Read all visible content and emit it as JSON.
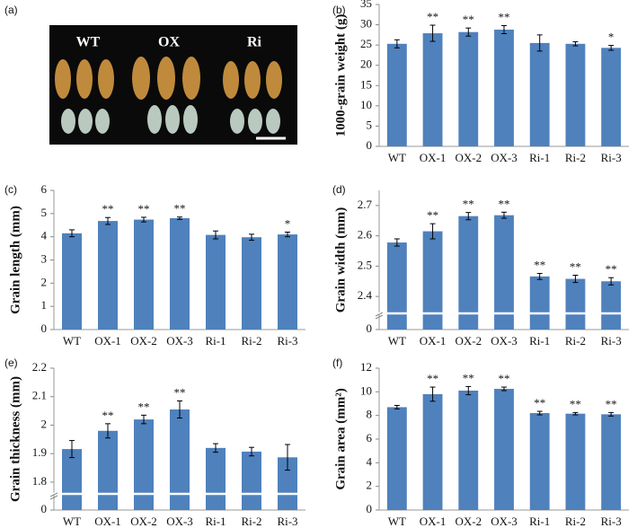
{
  "photo": {
    "panel_label": "(a)",
    "labels": [
      "WT",
      "OX",
      "Ri"
    ]
  },
  "chart_data": [
    {
      "type": "bar",
      "panel_label": "(b)",
      "y_label": "1000-grain weight (g)",
      "color": "#4f81bd",
      "categories": [
        "WT",
        "OX-1",
        "OX-2",
        "OX-3",
        "Ri-1",
        "Ri-2",
        "Ri-3"
      ],
      "values": [
        25.3,
        27.9,
        28.2,
        28.8,
        25.5,
        25.3,
        24.3
      ],
      "errors": [
        1.0,
        2.0,
        1.0,
        1.0,
        2.0,
        0.5,
        0.6
      ],
      "annotations": [
        null,
        "**",
        "**",
        "**",
        null,
        null,
        "*"
      ],
      "ylim": [
        0,
        35
      ],
      "yticks": [
        0,
        5,
        10,
        15,
        20,
        25,
        30,
        35
      ]
    },
    {
      "type": "bar",
      "panel_label": "(c)",
      "y_label": "Grain length (mm)",
      "color": "#4f81bd",
      "categories": [
        "WT",
        "OX-1",
        "OX-2",
        "OX-3",
        "Ri-1",
        "Ri-2",
        "Ri-3"
      ],
      "values": [
        4.15,
        4.68,
        4.74,
        4.8,
        4.08,
        3.98,
        4.1
      ],
      "errors": [
        0.15,
        0.15,
        0.1,
        0.05,
        0.17,
        0.13,
        0.1
      ],
      "annotations": [
        null,
        "**",
        "**",
        "**",
        null,
        null,
        "*"
      ],
      "ylim": [
        0,
        6
      ],
      "yticks": [
        0,
        1,
        2,
        3,
        4,
        5,
        6
      ]
    },
    {
      "type": "bar",
      "panel_label": "(d)",
      "y_label": "Grain width (mm)",
      "color": "#4f81bd",
      "categories": [
        "WT",
        "OX-1",
        "OX-2",
        "OX-3",
        "Ri-1",
        "Ri-2",
        "Ri-3"
      ],
      "values": [
        2.578,
        2.615,
        2.665,
        2.668,
        2.466,
        2.458,
        2.45
      ],
      "errors": [
        0.012,
        0.025,
        0.012,
        0.01,
        0.01,
        0.012,
        0.012
      ],
      "annotations": [
        null,
        "**",
        "**",
        "**",
        "**",
        "**",
        "**"
      ],
      "ylim": [
        0,
        2.75
      ],
      "yticks": [
        0,
        2.4,
        2.5,
        2.6,
        2.7
      ],
      "axis_break": [
        0,
        2.35
      ]
    },
    {
      "type": "bar",
      "panel_label": "(e)",
      "y_label": "Grain thickness (mm)",
      "color": "#4f81bd",
      "categories": [
        "WT",
        "OX-1",
        "OX-2",
        "OX-3",
        "Ri-1",
        "Ri-2",
        "Ri-3"
      ],
      "values": [
        1.916,
        1.98,
        2.02,
        2.055,
        1.92,
        1.907,
        1.887
      ],
      "errors": [
        0.03,
        0.025,
        0.015,
        0.03,
        0.015,
        0.015,
        0.045
      ],
      "annotations": [
        null,
        "**",
        "**",
        "**",
        null,
        null,
        null
      ],
      "ylim": [
        0,
        2.2
      ],
      "yticks": [
        0,
        1.8,
        1.9,
        2,
        2.1,
        2.2
      ],
      "axis_break": [
        0,
        1.765
      ]
    },
    {
      "type": "bar",
      "panel_label": "(f)",
      "y_label": "Grain area (mm²)",
      "color": "#4f81bd",
      "categories": [
        "WT",
        "OX-1",
        "OX-2",
        "OX-3",
        "Ri-1",
        "Ri-2",
        "Ri-3"
      ],
      "values": [
        8.7,
        9.8,
        10.1,
        10.25,
        8.2,
        8.15,
        8.1
      ],
      "errors": [
        0.15,
        0.6,
        0.35,
        0.15,
        0.15,
        0.1,
        0.15
      ],
      "annotations": [
        null,
        "**",
        "**",
        "**",
        "**",
        "**",
        "**"
      ],
      "ylim": [
        0,
        12
      ],
      "yticks": [
        0,
        2,
        4,
        6,
        8,
        10,
        12
      ]
    }
  ]
}
